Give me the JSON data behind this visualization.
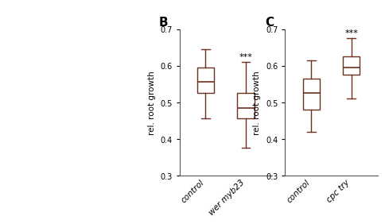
{
  "panel_B": {
    "title": "B",
    "ylabel": "rel. root growth",
    "ylim": [
      0.3,
      0.7
    ],
    "yticks": [
      0.3,
      0.4,
      0.5,
      0.6,
      0.7
    ],
    "categories": [
      "control",
      "wer myb23"
    ],
    "boxes": [
      {
        "q1": 0.525,
        "median": 0.555,
        "q3": 0.595,
        "whislo": 0.455,
        "whishi": 0.645
      },
      {
        "q1": 0.455,
        "median": 0.485,
        "q3": 0.525,
        "whislo": 0.375,
        "whishi": 0.61
      }
    ],
    "sig_label": "***",
    "sig_index": 1
  },
  "panel_C": {
    "title": "C",
    "ylabel": "rel. root growth",
    "ylim": [
      0.3,
      0.7
    ],
    "yticks": [
      0.3,
      0.4,
      0.5,
      0.6,
      0.7
    ],
    "categories": [
      "control",
      "cpc try"
    ],
    "boxes": [
      {
        "q1": 0.48,
        "median": 0.525,
        "q3": 0.565,
        "whislo": 0.42,
        "whishi": 0.615
      },
      {
        "q1": 0.575,
        "median": 0.595,
        "q3": 0.625,
        "whislo": 0.51,
        "whishi": 0.675
      }
    ],
    "sig_label": "***",
    "sig_index": 1
  },
  "box_color": "#ffffff",
  "box_edge_color": "#6B3020",
  "whisker_color": "#6B3020",
  "median_color": "#6B3020",
  "title_fontsize": 11,
  "label_fontsize": 7.5,
  "tick_fontsize": 7,
  "sig_fontsize": 8,
  "panel_A_bg": "#4a7aaa",
  "fig_bg": "#ffffff"
}
